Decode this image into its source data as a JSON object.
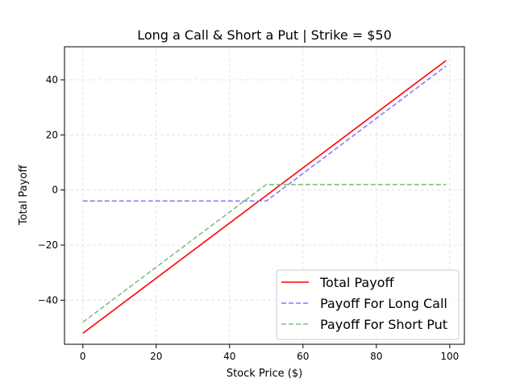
{
  "chart_data": {
    "type": "line",
    "title": "Long a Call & Short a Put | Strike = $50",
    "xlabel": "Stock Price ($)",
    "ylabel": "Total Payoff",
    "xlim": [
      -5,
      104
    ],
    "ylim": [
      -56,
      52
    ],
    "xticks": [
      0,
      20,
      40,
      60,
      80,
      100
    ],
    "yticks": [
      -40,
      -20,
      0,
      20,
      40
    ],
    "xtick_labels": [
      "0",
      "20",
      "40",
      "60",
      "80",
      "100"
    ],
    "ytick_labels": [
      "−40",
      "−20",
      "0",
      "20",
      "40"
    ],
    "grid": true,
    "legend_position": "lower-right",
    "series": [
      {
        "name": "Total Payoff",
        "color": "#ff0000",
        "style": "solid",
        "x": [
          0,
          99
        ],
        "y": [
          -52,
          47
        ]
      },
      {
        "name": "Payoff For Long Call",
        "color": "#7f7fff",
        "style": "dashed",
        "x": [
          0,
          50,
          99
        ],
        "y": [
          -4,
          -4,
          45
        ]
      },
      {
        "name": "Payoff For Short Put",
        "color": "#7fbf7f",
        "style": "dashed",
        "x": [
          0,
          50,
          99
        ],
        "y": [
          -48,
          2,
          2
        ]
      }
    ]
  }
}
